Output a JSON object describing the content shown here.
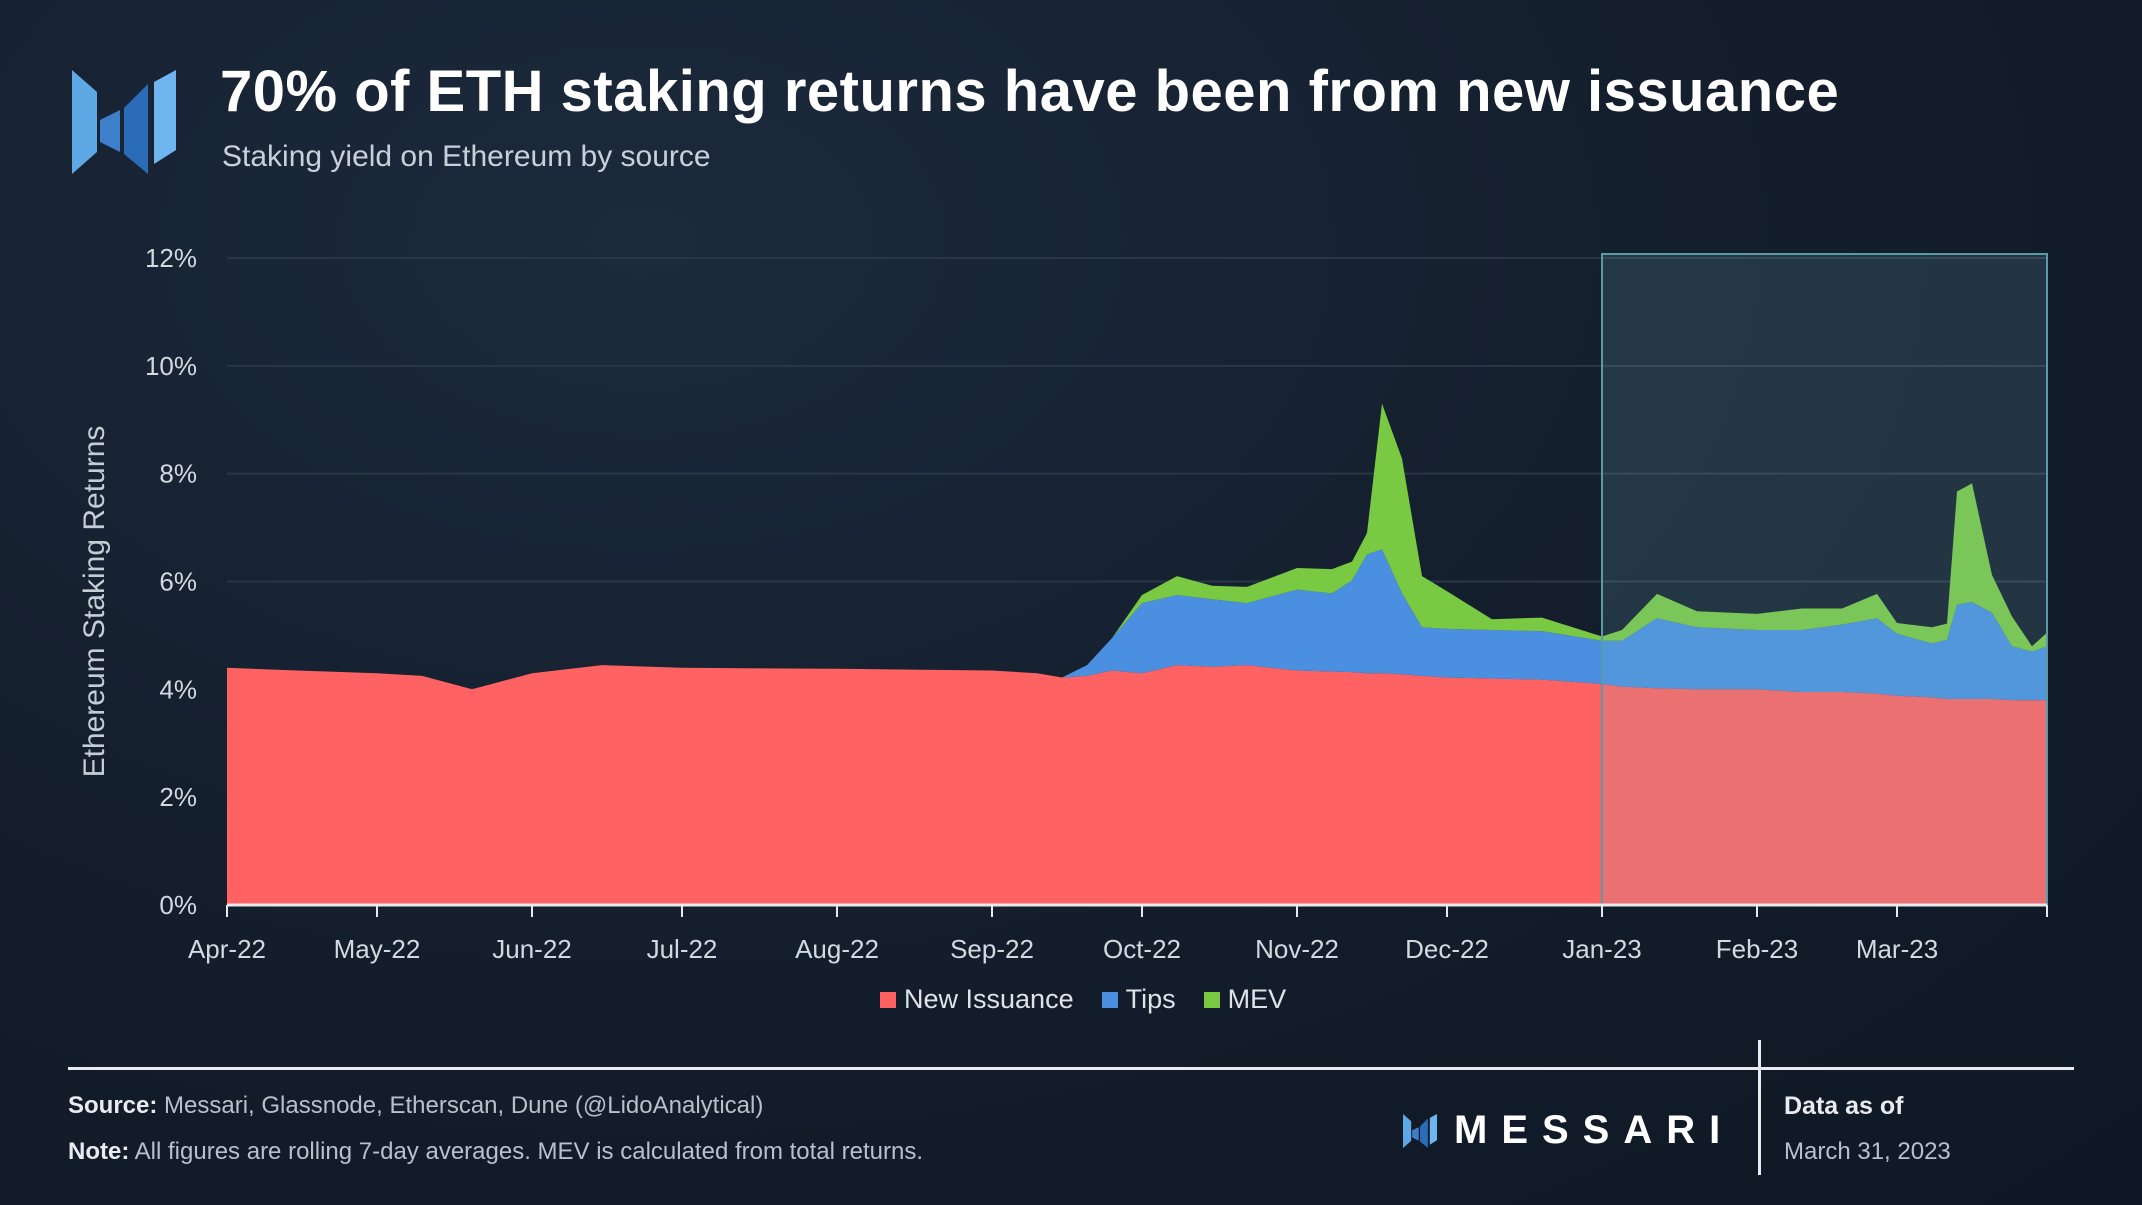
{
  "header": {
    "title": "70% of ETH staking returns have been from new issuance",
    "subtitle": "Staking yield on Ethereum by source"
  },
  "colors": {
    "new_issuance": "#ff6262",
    "tips": "#4a8fe0",
    "mev": "#7ac943",
    "highlight_border": "#5a9aa8",
    "grid": "#2b3644"
  },
  "chart_data": {
    "type": "area",
    "stacked": true,
    "ylabel": "Ethereum Staking Returns",
    "xlabel": "",
    "ylim": [
      0,
      12
    ],
    "y_ticks": [
      "0%",
      "2%",
      "4%",
      "6%",
      "8%",
      "10%",
      "12%"
    ],
    "x_ticks": [
      "Apr-22",
      "May-22",
      "Jun-22",
      "Jul-22",
      "Aug-22",
      "Sep-22",
      "Oct-22",
      "Nov-22",
      "Dec-22",
      "Jan-23",
      "Feb-23",
      "Mar-23"
    ],
    "x_range": [
      "2022-04-01",
      "2023-03-31"
    ],
    "grid": true,
    "legend": {
      "position": "bottom-center",
      "entries": [
        "New Issuance",
        "Tips",
        "MEV"
      ]
    },
    "highlight_range": [
      "2023-01-01",
      "2023-03-31"
    ],
    "x": [
      "2022-04-01",
      "2022-04-15",
      "2022-05-01",
      "2022-05-10",
      "2022-05-20",
      "2022-06-01",
      "2022-06-15",
      "2022-07-01",
      "2022-08-01",
      "2022-09-01",
      "2022-09-10",
      "2022-09-15",
      "2022-09-20",
      "2022-09-25",
      "2022-10-01",
      "2022-10-08",
      "2022-10-15",
      "2022-10-22",
      "2022-11-01",
      "2022-11-08",
      "2022-11-12",
      "2022-11-15",
      "2022-11-18",
      "2022-11-22",
      "2022-11-26",
      "2022-12-01",
      "2022-12-10",
      "2022-12-20",
      "2023-01-01",
      "2023-01-05",
      "2023-01-12",
      "2023-01-20",
      "2023-02-01",
      "2023-02-10",
      "2023-02-18",
      "2023-02-25",
      "2023-03-01",
      "2023-03-08",
      "2023-03-11",
      "2023-03-13",
      "2023-03-16",
      "2023-03-20",
      "2023-03-24",
      "2023-03-28",
      "2023-03-31"
    ],
    "series": [
      {
        "name": "New Issuance",
        "values": [
          4.4,
          4.35,
          4.3,
          4.25,
          4.0,
          4.3,
          4.45,
          4.4,
          4.38,
          4.35,
          4.3,
          4.22,
          4.25,
          4.35,
          4.3,
          4.45,
          4.42,
          4.45,
          4.35,
          4.33,
          4.32,
          4.3,
          4.3,
          4.28,
          4.25,
          4.22,
          4.2,
          4.18,
          4.1,
          4.05,
          4.02,
          4.0,
          4.0,
          3.95,
          3.95,
          3.92,
          3.88,
          3.85,
          3.82,
          3.82,
          3.82,
          3.82,
          3.8,
          3.8,
          3.8
        ]
      },
      {
        "name": "Tips",
        "values": [
          0,
          0,
          0,
          0,
          0,
          0,
          0,
          0,
          0,
          0,
          0,
          0,
          0.2,
          0.6,
          1.3,
          1.3,
          1.25,
          1.15,
          1.5,
          1.45,
          1.7,
          2.2,
          2.3,
          1.5,
          0.9,
          0.9,
          0.9,
          0.9,
          0.8,
          0.85,
          1.3,
          1.15,
          1.1,
          1.15,
          1.25,
          1.4,
          1.15,
          1.0,
          1.1,
          1.75,
          1.8,
          1.6,
          1.0,
          0.9,
          1.0
        ]
      },
      {
        "name": "MEV",
        "values": [
          0,
          0,
          0,
          0,
          0,
          0,
          0,
          0,
          0,
          0,
          0,
          0,
          0,
          0,
          0.15,
          0.35,
          0.25,
          0.3,
          0.4,
          0.45,
          0.35,
          0.4,
          2.7,
          2.5,
          0.95,
          0.7,
          0.2,
          0.25,
          0.08,
          0.2,
          0.45,
          0.3,
          0.3,
          0.4,
          0.3,
          0.45,
          0.2,
          0.3,
          0.3,
          2.1,
          2.2,
          0.7,
          0.55,
          0.1,
          0.25
        ]
      }
    ]
  },
  "footer": {
    "source_label": "Source:",
    "source_text": "Messari, Glassnode, Etherscan, Dune (@LidoAnalytical)",
    "note_label": "Note:",
    "note_text": "All figures are rolling 7-day averages. MEV is calculated from total returns.",
    "brand": "MESSARI",
    "as_of_label": "Data as of",
    "as_of_date": "March 31, 2023"
  }
}
